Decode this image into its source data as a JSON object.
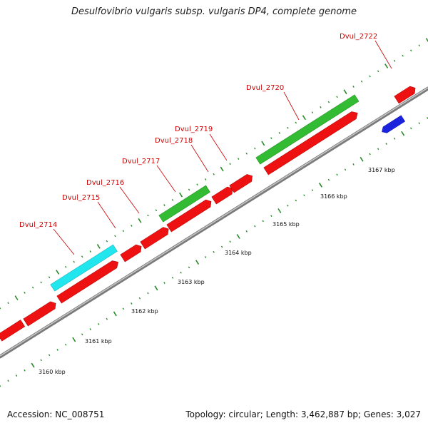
{
  "title": "Desulfovibrio vulgaris subsp. vulgaris DP4, complete genome",
  "accession": "Accession: NC_008751",
  "genome_info": "Topology: circular; Length: 3,462,887 bp; Genes: 3,027",
  "colors": {
    "backbone": "#9a9a9a",
    "tick": "#2a8a2a",
    "gene_default": "#ee1111",
    "gene_highlight_cyan": "#22e6ee",
    "gene_highlight_green": "#33bb33",
    "gene_reverse": "#1a22dd",
    "label": "#cc0000"
  },
  "gene_labels": [
    "Dvul_2714",
    "Dvul_2715",
    "Dvul_2716",
    "Dvul_2717",
    "Dvul_2718",
    "Dvul_2719",
    "Dvul_2720",
    "Dvul_2722"
  ],
  "kbp_labels": [
    "3160 kbp",
    "3161 kbp",
    "3162 kbp",
    "3163 kbp",
    "3164 kbp",
    "3165 kbp",
    "3166 kbp",
    "3167 kbp"
  ]
}
